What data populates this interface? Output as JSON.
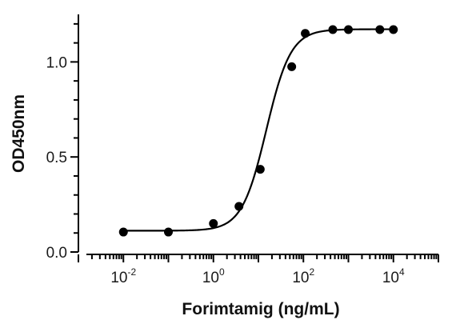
{
  "chart_data": {
    "type": "scatter",
    "title": "",
    "xlabel": "Forimtamig (ng/mL)",
    "ylabel": "OD450nm",
    "x_scale": "log10",
    "xlim": [
      0.001,
      100000
    ],
    "ylim": [
      0,
      1.25
    ],
    "grid": false,
    "legend": "none",
    "x_tick_labels": [
      {
        "base": "10",
        "exp": "-2",
        "value": 0.01
      },
      {
        "base": "10",
        "exp": "0",
        "value": 1
      },
      {
        "base": "10",
        "exp": "2",
        "value": 100
      },
      {
        "base": "10",
        "exp": "4",
        "value": 10000
      }
    ],
    "y_tick_labels": [
      {
        "label": "0.0",
        "value": 0.0
      },
      {
        "label": "0.5",
        "value": 0.5
      },
      {
        "label": "1.0",
        "value": 1.0
      }
    ],
    "series": [
      {
        "x": [
          0.01,
          0.1,
          1,
          3.7,
          11,
          55,
          110,
          450,
          1000,
          5000,
          10000
        ],
        "y": [
          0.105,
          0.105,
          0.15,
          0.24,
          0.435,
          0.975,
          1.15,
          1.17,
          1.17,
          1.17,
          1.17
        ],
        "color": "#000000",
        "marker": "circle"
      }
    ],
    "fit_curve": {
      "model": "4PL",
      "bottom": 0.112,
      "top": 1.172,
      "ec50": 15,
      "hill": 1.6,
      "color": "#000000"
    }
  }
}
